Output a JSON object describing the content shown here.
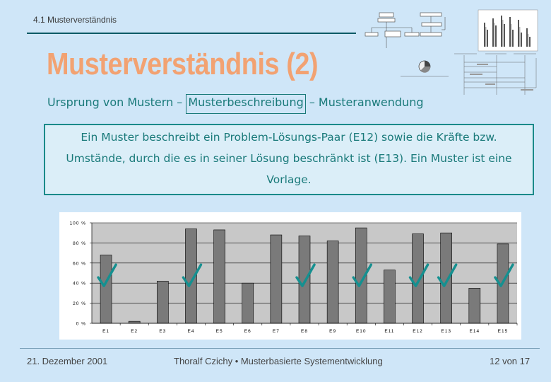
{
  "header": {
    "section_label": "4.1 Musterverständnis",
    "title": "Musterverständnis (2)"
  },
  "subtitle": {
    "part1": "Ursprung von Mustern – ",
    "part2": "Musterbeschreibung",
    "part3": " – Musteranwendung"
  },
  "info_box": {
    "line1": "Ein Muster beschreibt ein Problem-Lösungs-Paar (E12) sowie die Kräfte bzw.",
    "line2": "Umstände, durch die es in seiner Lösung beschränkt ist (E13). Ein Muster ist eine",
    "line3": "Vorlage."
  },
  "chart_data": {
    "type": "bar",
    "categories": [
      "E1",
      "E2",
      "E3",
      "E4",
      "E5",
      "E6",
      "E7",
      "E8",
      "E9",
      "E10",
      "E11",
      "E12",
      "E13",
      "E14",
      "E15"
    ],
    "values": [
      68,
      2,
      42,
      94,
      93,
      40,
      88,
      87,
      82,
      95,
      53,
      89,
      90,
      35,
      79
    ],
    "checked": [
      true,
      false,
      false,
      true,
      false,
      false,
      false,
      true,
      false,
      true,
      false,
      true,
      true,
      false,
      true
    ],
    "yticks": [
      "0 %",
      "20 %",
      "40 %",
      "60 %",
      "80 %",
      "100 %"
    ],
    "ylim": [
      0,
      100
    ],
    "grid": true,
    "colors": {
      "bar": "#7a7a7a",
      "plot_bg": "#c8c8c8",
      "check": "#159090"
    }
  },
  "footer": {
    "date": "21. Dezember 2001",
    "center": "Thoralf Czichy • Musterbasierte Systementwicklung",
    "page": "12 von 17"
  }
}
